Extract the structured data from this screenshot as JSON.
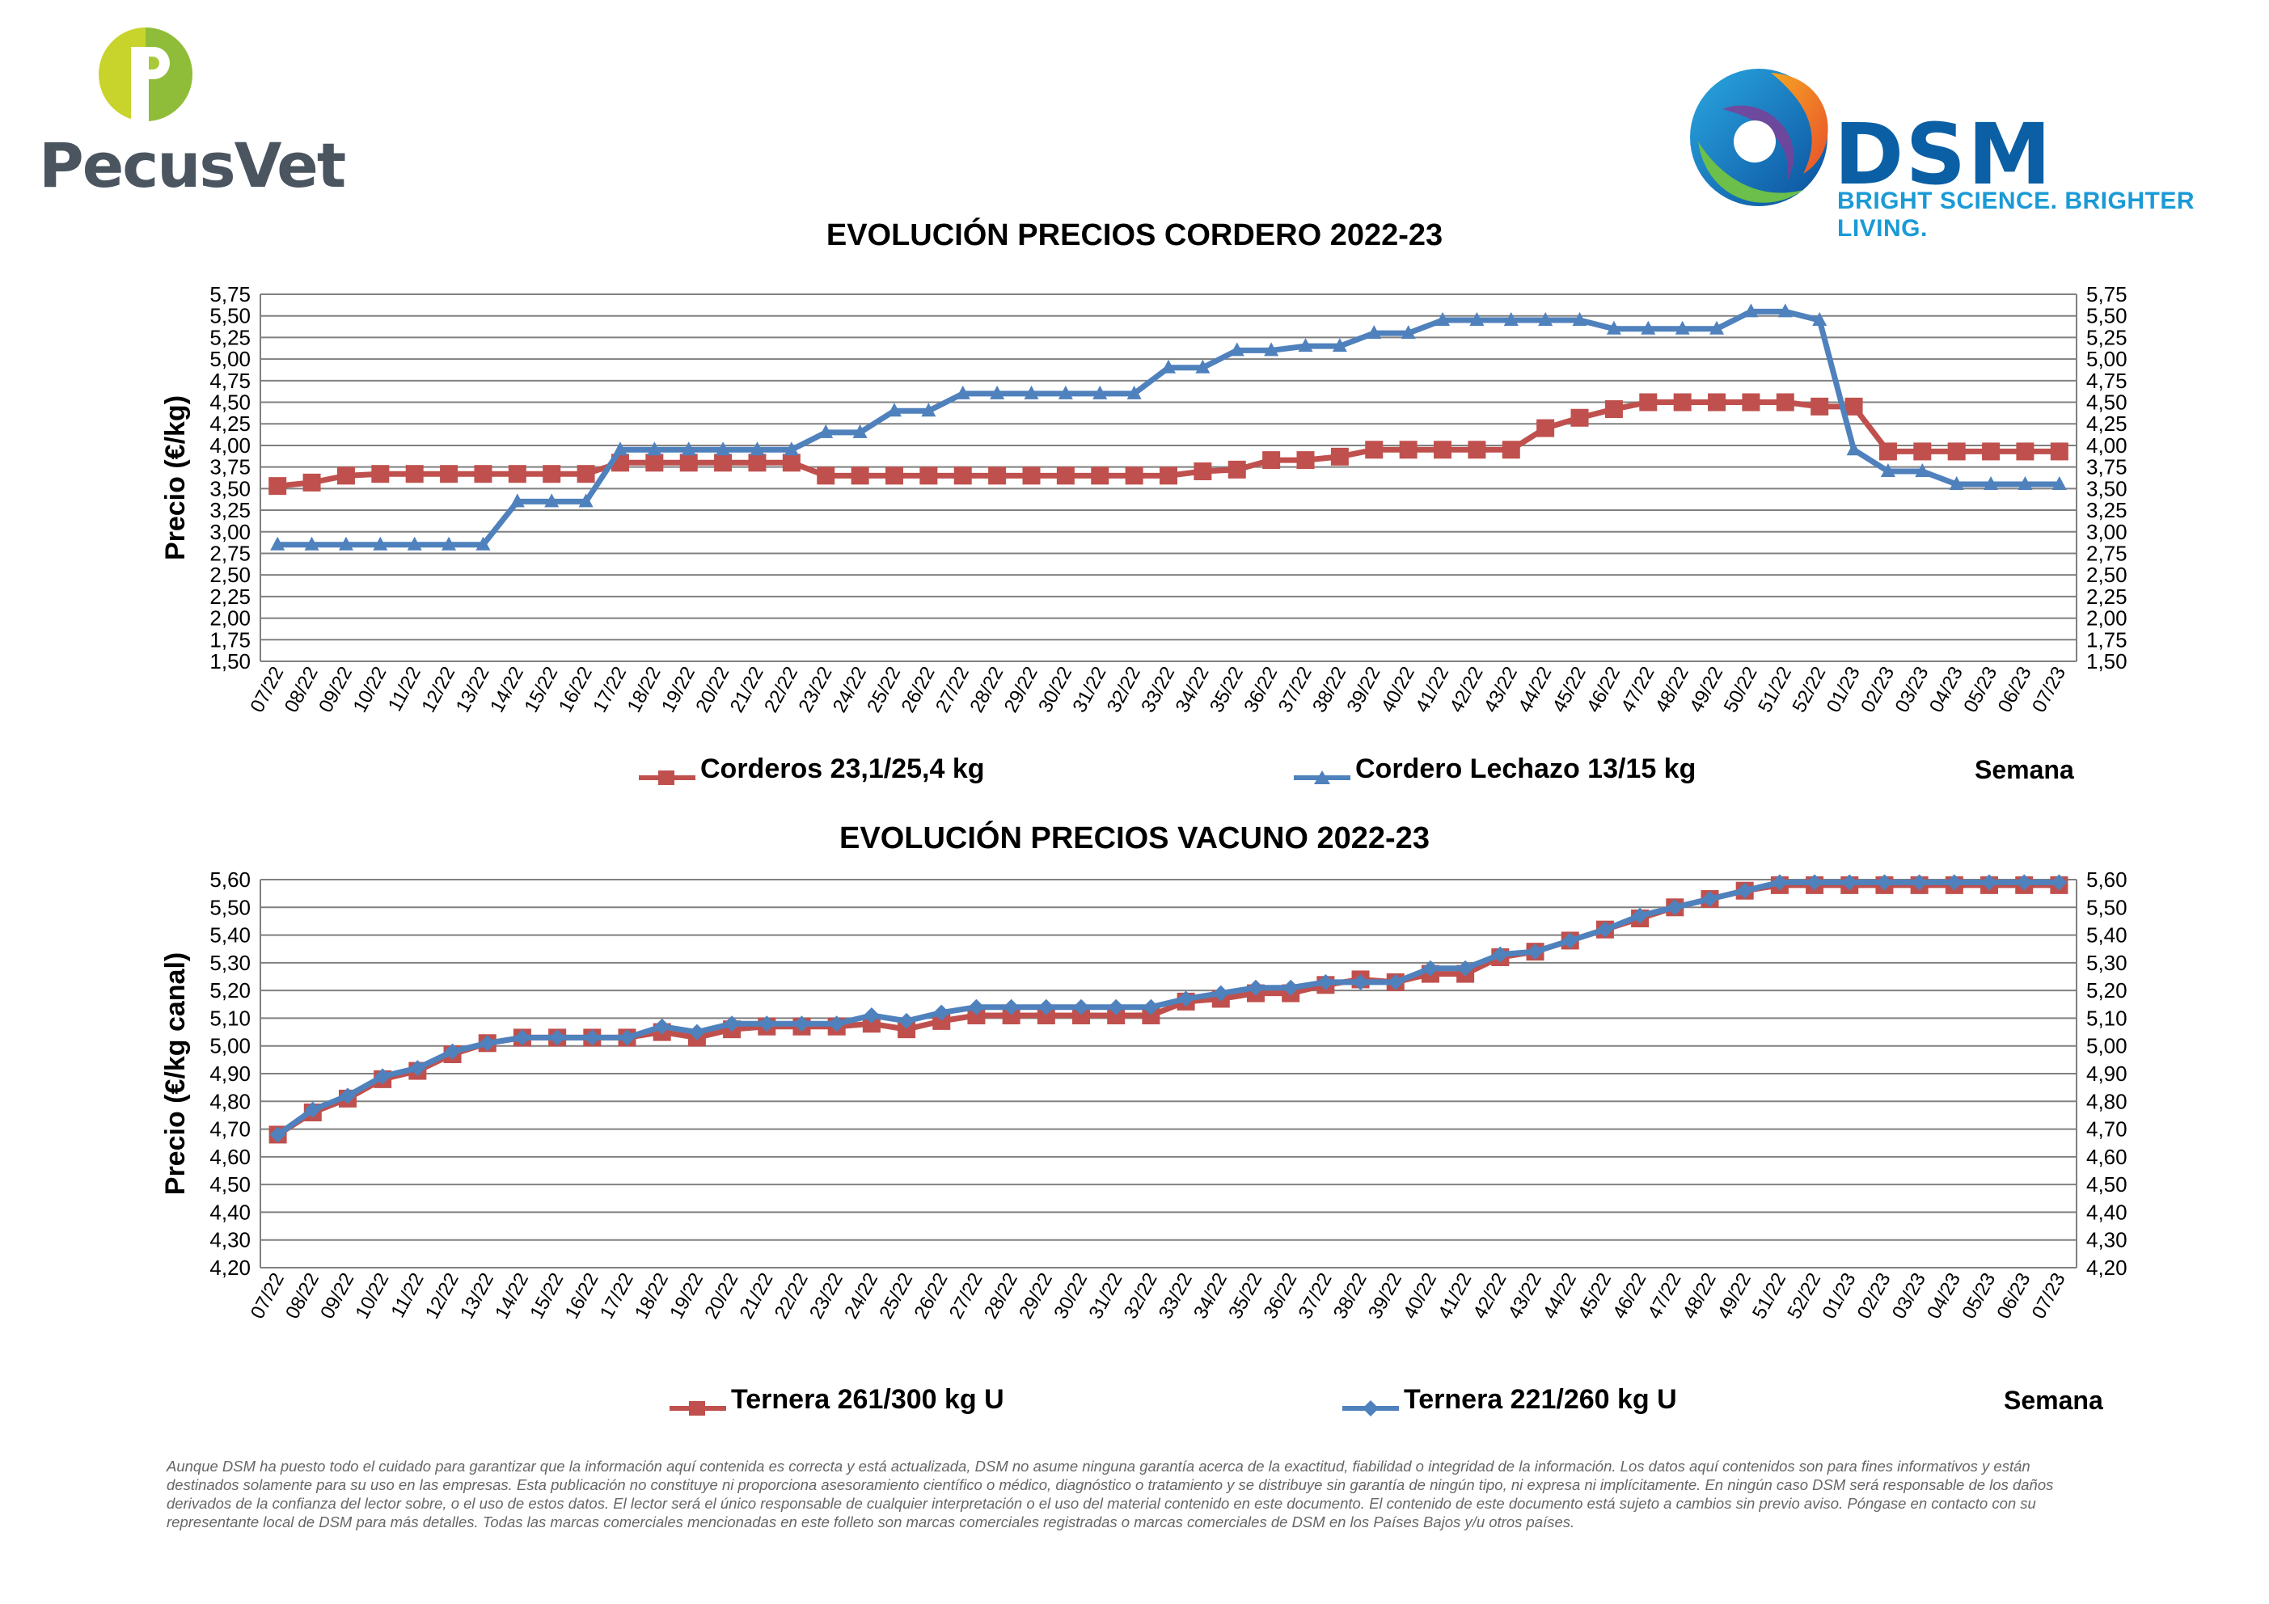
{
  "logos": {
    "left_text": "PecusVet",
    "right_text": "DSM",
    "right_tagline": "BRIGHT SCIENCE. BRIGHTER LIVING."
  },
  "colors": {
    "red": "#c0504d",
    "blue": "#4f81bd"
  },
  "chart_data": [
    {
      "type": "line",
      "title": "EVOLUCIÓN PRECIOS CORDERO 2022-23",
      "ylabel": "Precio (€/kg)",
      "xlabel": "Semana",
      "ylim": [
        1.5,
        5.75
      ],
      "yticks": [
        "1,50",
        "1,75",
        "2,00",
        "2,25",
        "2,50",
        "2,75",
        "3,00",
        "3,25",
        "3,50",
        "3,75",
        "4,00",
        "4,25",
        "4,50",
        "4,75",
        "5,00",
        "5,25",
        "5,50",
        "5,75"
      ],
      "categories": [
        "07/22",
        "08/22",
        "09/22",
        "10/22",
        "11/22",
        "12/22",
        "13/22",
        "14/22",
        "15/22",
        "16/22",
        "17/22",
        "18/22",
        "19/22",
        "20/22",
        "21/22",
        "22/22",
        "23/22",
        "24/22",
        "25/22",
        "26/22",
        "27/22",
        "28/22",
        "29/22",
        "30/22",
        "31/22",
        "32/22",
        "33/22",
        "34/22",
        "35/22",
        "36/22",
        "37/22",
        "38/22",
        "39/22",
        "40/22",
        "41/22",
        "42/22",
        "43/22",
        "44/22",
        "45/22",
        "46/22",
        "47/22",
        "48/22",
        "49/22",
        "50/22",
        "51/22",
        "52/22",
        "01/23",
        "02/23",
        "03/23",
        "04/23",
        "05/23",
        "06/23",
        "07/23"
      ],
      "series": [
        {
          "name": "Corderos 23,1/25,4 kg",
          "color": "#c0504d",
          "marker": "square",
          "values": [
            3.53,
            3.57,
            3.65,
            3.67,
            3.67,
            3.67,
            3.67,
            3.67,
            3.67,
            3.67,
            3.8,
            3.8,
            3.8,
            3.8,
            3.8,
            3.8,
            3.65,
            3.65,
            3.65,
            3.65,
            3.65,
            3.65,
            3.65,
            3.65,
            3.65,
            3.65,
            3.65,
            3.7,
            3.72,
            3.83,
            3.83,
            3.87,
            3.95,
            3.95,
            3.95,
            3.95,
            3.95,
            4.2,
            4.32,
            4.42,
            4.5,
            4.5,
            4.5,
            4.5,
            4.5,
            4.45,
            4.45,
            3.93,
            3.93,
            3.93,
            3.93,
            3.93,
            3.93
          ]
        },
        {
          "name": "Cordero Lechazo 13/15 kg",
          "color": "#4f81bd",
          "marker": "triangle",
          "values": [
            2.85,
            2.85,
            2.85,
            2.85,
            2.85,
            2.85,
            2.85,
            3.35,
            3.35,
            3.35,
            3.95,
            3.95,
            3.95,
            3.95,
            3.95,
            3.95,
            4.15,
            4.15,
            4.4,
            4.4,
            4.6,
            4.6,
            4.6,
            4.6,
            4.6,
            4.6,
            4.9,
            4.9,
            5.1,
            5.1,
            5.15,
            5.15,
            5.3,
            5.3,
            5.45,
            5.45,
            5.45,
            5.45,
            5.45,
            5.35,
            5.35,
            5.35,
            5.35,
            5.55,
            5.55,
            5.45,
            3.95,
            3.7,
            3.7,
            3.55,
            3.55,
            3.55,
            3.55
          ]
        }
      ]
    },
    {
      "type": "line",
      "title": "EVOLUCIÓN PRECIOS VACUNO 2022-23",
      "ylabel": "Precio (€/kg canal)",
      "xlabel": "Semana",
      "ylim": [
        4.2,
        5.6
      ],
      "yticks": [
        "4,20",
        "4,30",
        "4,40",
        "4,50",
        "4,60",
        "4,70",
        "4,80",
        "4,90",
        "5,00",
        "5,10",
        "5,20",
        "5,30",
        "5,40",
        "5,50",
        "5,60"
      ],
      "categories": [
        "07/22",
        "08/22",
        "09/22",
        "10/22",
        "11/22",
        "12/22",
        "13/22",
        "14/22",
        "15/22",
        "16/22",
        "17/22",
        "18/22",
        "19/22",
        "20/22",
        "21/22",
        "22/22",
        "23/22",
        "24/22",
        "25/22",
        "26/22",
        "27/22",
        "28/22",
        "29/22",
        "30/22",
        "31/22",
        "32/22",
        "33/22",
        "34/22",
        "35/22",
        "36/22",
        "37/22",
        "38/22",
        "39/22",
        "40/22",
        "41/22",
        "42/22",
        "43/22",
        "44/22",
        "45/22",
        "46/22",
        "47/22",
        "48/22",
        "49/22",
        "51/22",
        "52/22",
        "01/23",
        "02/23",
        "03/23",
        "04/23",
        "05/23",
        "06/23",
        "07/23"
      ],
      "series": [
        {
          "name": "Ternera 261/300 kg U",
          "color": "#c0504d",
          "marker": "square",
          "values": [
            4.68,
            4.76,
            4.81,
            4.88,
            4.91,
            4.97,
            5.01,
            5.03,
            5.03,
            5.03,
            5.03,
            5.05,
            5.03,
            5.06,
            5.07,
            5.07,
            5.07,
            5.08,
            5.06,
            5.09,
            5.11,
            5.11,
            5.11,
            5.11,
            5.11,
            5.11,
            5.16,
            5.17,
            5.19,
            5.19,
            5.22,
            5.24,
            5.23,
            5.26,
            5.26,
            5.32,
            5.34,
            5.38,
            5.42,
            5.46,
            5.5,
            5.53,
            5.56,
            5.58,
            5.58,
            5.58,
            5.58,
            5.58,
            5.58,
            5.58,
            5.58,
            5.58
          ]
        },
        {
          "name": "Ternera 221/260 kg U",
          "color": "#4f81bd",
          "marker": "diamond",
          "values": [
            4.68,
            4.77,
            4.82,
            4.89,
            4.92,
            4.98,
            5.01,
            5.03,
            5.03,
            5.03,
            5.03,
            5.07,
            5.05,
            5.08,
            5.08,
            5.08,
            5.08,
            5.11,
            5.09,
            5.12,
            5.14,
            5.14,
            5.14,
            5.14,
            5.14,
            5.14,
            5.17,
            5.19,
            5.21,
            5.21,
            5.23,
            5.23,
            5.23,
            5.28,
            5.28,
            5.33,
            5.34,
            5.38,
            5.42,
            5.47,
            5.5,
            5.53,
            5.56,
            5.59,
            5.59,
            5.59,
            5.59,
            5.59,
            5.59,
            5.59,
            5.59,
            5.59
          ]
        }
      ]
    }
  ],
  "disclaimer": "Aunque DSM ha puesto todo el cuidado para garantizar que la información aquí contenida es correcta y está actualizada, DSM no asume ninguna garantía acerca de la exactitud, fiabilidad o integridad de la información. Los datos aquí contenidos son para fines informativos y están destinados solamente para su uso en las empresas. Esta publicación no constituye ni proporciona asesoramiento científico o médico, diagnóstico o tratamiento y se distribuye sin garantía de ningún tipo, ni expresa ni implícitamente. En ningún caso DSM será responsable de los daños derivados de la confianza del lector sobre, o el uso de estos datos. El lector será el único responsable de cualquier interpretación o el uso del material contenido en este documento. El contenido de este documento está sujeto a cambios sin previo aviso. Póngase en contacto con su representante local de DSM para más detalles. Todas las marcas comerciales mencionadas en este folleto son marcas comerciales registradas o marcas comerciales de DSM en los Países Bajos y/u otros países."
}
